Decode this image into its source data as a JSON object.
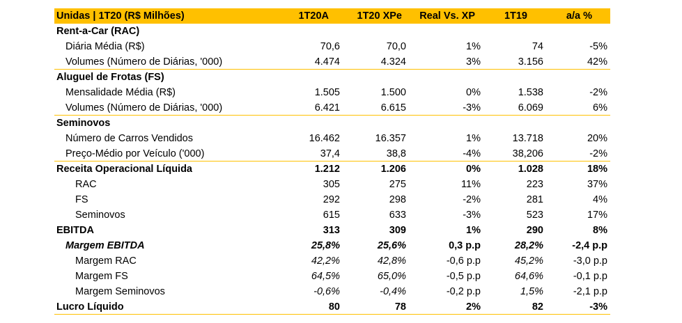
{
  "header": {
    "label": "Unidas | 1T20 (R$ Milhões)",
    "columns": [
      "1T20A",
      "1T20 XPe",
      "Real Vs. XP",
      "1T19",
      "a/a %"
    ]
  },
  "rows": [
    {
      "label": "Rent-a-Car (RAC)",
      "values": [
        "",
        "",
        "",
        "",
        ""
      ]
    },
    {
      "label": "Diária Média (R$)",
      "values": [
        "70,6",
        "70,0",
        "1%",
        "74",
        "-5%"
      ]
    },
    {
      "label": "Volumes (Número de Diárias, '000)",
      "values": [
        "4.474",
        "4.324",
        "3%",
        "3.156",
        "42%"
      ]
    },
    {
      "label": "Aluguel de Frotas (FS)",
      "values": [
        "",
        "",
        "",
        "",
        ""
      ]
    },
    {
      "label": "Mensalidade Média (R$)",
      "values": [
        "1.505",
        "1.500",
        "0%",
        "1.538",
        "-2%"
      ]
    },
    {
      "label": "Volumes (Número de Diárias, '000)",
      "values": [
        "6.421",
        "6.615",
        "-3%",
        "6.069",
        "6%"
      ]
    },
    {
      "label": "Seminovos",
      "values": [
        "",
        "",
        "",
        "",
        ""
      ]
    },
    {
      "label": "Número de Carros Vendidos",
      "values": [
        "16.462",
        "16.357",
        "1%",
        "13.718",
        "20%"
      ]
    },
    {
      "label": "Preço-Médio por Veículo ('000)",
      "values": [
        "37,4",
        "38,8",
        "-4%",
        "38,206",
        "-2%"
      ]
    },
    {
      "label": "Receita Operacional Líquida",
      "values": [
        "1.212",
        "1.206",
        "0%",
        "1.028",
        "18%"
      ]
    },
    {
      "label": "RAC",
      "values": [
        "305",
        "275",
        "11%",
        "223",
        "37%"
      ]
    },
    {
      "label": "FS",
      "values": [
        "292",
        "298",
        "-2%",
        "281",
        "4%"
      ]
    },
    {
      "label": "Seminovos",
      "values": [
        "615",
        "633",
        "-3%",
        "523",
        "17%"
      ]
    },
    {
      "label": "EBITDA",
      "values": [
        "313",
        "309",
        "1%",
        "290",
        "8%"
      ]
    },
    {
      "label": "Margem EBITDA",
      "values": [
        "25,8%",
        "25,6%",
        "0,3 p.p",
        "28,2%",
        "-2,4 p.p"
      ]
    },
    {
      "label": "Margem RAC",
      "values": [
        "42,2%",
        "42,8%",
        "-0,6 p.p",
        "45,2%",
        "-3,0 p.p"
      ]
    },
    {
      "label": "Margem FS",
      "values": [
        "64,5%",
        "65,0%",
        "-0,5 p.p",
        "64,6%",
        "-0,1 p.p"
      ]
    },
    {
      "label": "Margem Seminovos",
      "values": [
        "-0,6%",
        "-0,4%",
        "-0,2 p.p",
        "1,5%",
        "-2,1 p.p"
      ]
    },
    {
      "label": "Lucro Líquido",
      "values": [
        "80",
        "78",
        "2%",
        "82",
        "-3%"
      ]
    }
  ],
  "colors": {
    "accent": "#FFC000",
    "text": "#000000",
    "background": "#FFFFFF"
  }
}
